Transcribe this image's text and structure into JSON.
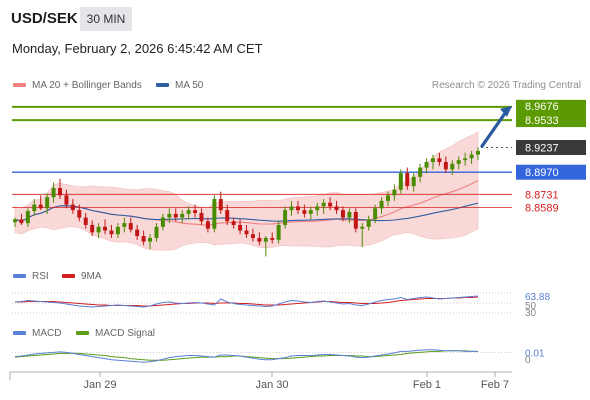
{
  "header": {
    "symbol": "USD/SEK",
    "timeframe": "30 MIN",
    "datetime": "Monday, February 2, 2026 6:45:42 AM CET"
  },
  "legend": {
    "ma20": "MA 20 + Bollinger Bands",
    "ma50": "MA 50",
    "credit": "Research © 2026 Trading Central"
  },
  "colors": {
    "ma20": "#f08080",
    "ma50": "#2f5fa3",
    "bollinger_fill": "#f9d4d4",
    "resistance": "#5b9a00",
    "support": "#3366dd",
    "sub_level": "#d92020",
    "price_box": "#3a3a3a",
    "rsi": "#5b7fd6",
    "rsi_ma": "#d42020",
    "macd": "#5b7fd6",
    "macd_signal": "#5a9e1a",
    "arrow": "#2a5aa0"
  },
  "chart_data": [
    {
      "type": "candlestick",
      "x_labels": [
        "Jan 29",
        "Jan 30",
        "Feb 1",
        "Feb 7"
      ],
      "levels": [
        {
          "value": 8.9676,
          "label": "8.9676",
          "kind": "resistance"
        },
        {
          "value": 8.9533,
          "label": "8.9533",
          "kind": "resistance"
        },
        {
          "value": 8.897,
          "label": "8.8970",
          "kind": "support"
        },
        {
          "value": 8.8731,
          "label": "8.8731",
          "kind": "sub"
        },
        {
          "value": 8.8589,
          "label": "8.8589",
          "kind": "sub"
        }
      ],
      "last_price": {
        "value": 8.9237,
        "label": "8.9237"
      },
      "ohlc": [
        [
          8.843,
          8.848,
          8.838,
          8.846
        ],
        [
          8.846,
          8.852,
          8.84,
          8.842
        ],
        [
          8.842,
          8.858,
          8.838,
          8.855
        ],
        [
          8.855,
          8.868,
          8.85,
          8.862
        ],
        [
          8.862,
          8.872,
          8.856,
          8.858
        ],
        [
          8.858,
          8.874,
          8.852,
          8.87
        ],
        [
          8.87,
          8.886,
          8.864,
          8.88
        ],
        [
          8.88,
          8.89,
          8.868,
          8.872
        ],
        [
          8.872,
          8.878,
          8.858,
          8.862
        ],
        [
          8.862,
          8.868,
          8.852,
          8.856
        ],
        [
          8.856,
          8.862,
          8.844,
          8.848
        ],
        [
          8.848,
          8.853,
          8.836,
          8.84
        ],
        [
          8.84,
          8.845,
          8.828,
          8.832
        ],
        [
          8.832,
          8.842,
          8.826,
          8.838
        ],
        [
          8.838,
          8.846,
          8.83,
          8.834
        ],
        [
          8.834,
          8.84,
          8.826,
          8.83
        ],
        [
          8.83,
          8.842,
          8.826,
          8.838
        ],
        [
          8.838,
          8.848,
          8.832,
          8.842
        ],
        [
          8.842,
          8.848,
          8.832,
          8.835
        ],
        [
          8.835,
          8.84,
          8.824,
          8.828
        ],
        [
          8.828,
          8.834,
          8.818,
          8.822
        ],
        [
          8.822,
          8.83,
          8.814,
          8.826
        ],
        [
          8.826,
          8.842,
          8.822,
          8.838
        ],
        [
          8.838,
          8.852,
          8.834,
          8.848
        ],
        [
          8.848,
          8.858,
          8.842,
          8.852
        ],
        [
          8.852,
          8.858,
          8.844,
          8.848
        ],
        [
          8.848,
          8.856,
          8.842,
          8.852
        ],
        [
          8.852,
          8.86,
          8.846,
          8.856
        ],
        [
          8.856,
          8.862,
          8.848,
          8.853
        ],
        [
          8.853,
          8.858,
          8.84,
          8.844
        ],
        [
          8.844,
          8.848,
          8.832,
          8.836
        ],
        [
          8.836,
          8.872,
          8.832,
          8.868
        ],
        [
          8.868,
          8.876,
          8.852,
          8.856
        ],
        [
          8.856,
          8.862,
          8.84,
          8.844
        ],
        [
          8.844,
          8.848,
          8.836,
          8.84
        ],
        [
          8.84,
          8.846,
          8.83,
          8.834
        ],
        [
          8.834,
          8.84,
          8.826,
          8.83
        ],
        [
          8.83,
          8.836,
          8.822,
          8.826
        ],
        [
          8.826,
          8.832,
          8.818,
          8.822
        ],
        [
          8.822,
          8.828,
          8.806,
          8.826
        ],
        [
          8.826,
          8.832,
          8.82,
          8.824
        ],
        [
          8.824,
          8.844,
          8.82,
          8.84
        ],
        [
          8.84,
          8.86,
          8.836,
          8.856
        ],
        [
          8.856,
          8.866,
          8.85,
          8.86
        ],
        [
          8.86,
          8.866,
          8.852,
          8.856
        ],
        [
          8.856,
          8.862,
          8.848,
          8.852
        ],
        [
          8.852,
          8.86,
          8.846,
          8.856
        ],
        [
          8.856,
          8.864,
          8.85,
          8.86
        ],
        [
          8.86,
          8.868,
          8.852,
          8.864
        ],
        [
          8.864,
          8.87,
          8.856,
          8.86
        ],
        [
          8.86,
          8.866,
          8.852,
          8.856
        ],
        [
          8.856,
          8.86,
          8.844,
          8.848
        ],
        [
          8.848,
          8.858,
          8.842,
          8.854
        ],
        [
          8.854,
          8.858,
          8.832,
          8.836
        ],
        [
          8.836,
          8.842,
          8.816,
          8.838
        ],
        [
          8.838,
          8.85,
          8.834,
          8.846
        ],
        [
          8.846,
          8.862,
          8.842,
          8.858
        ],
        [
          8.858,
          8.87,
          8.852,
          8.866
        ],
        [
          8.866,
          8.876,
          8.86,
          8.872
        ],
        [
          8.872,
          8.884,
          8.866,
          8.878
        ],
        [
          8.878,
          8.9,
          8.874,
          8.896
        ],
        [
          8.896,
          8.902,
          8.878,
          8.882
        ],
        [
          8.882,
          8.896,
          8.876,
          8.892
        ],
        [
          8.892,
          8.906,
          8.886,
          8.902
        ],
        [
          8.902,
          8.912,
          8.896,
          8.908
        ],
        [
          8.908,
          8.916,
          8.9,
          8.912
        ],
        [
          8.912,
          8.918,
          8.904,
          8.908
        ],
        [
          8.908,
          8.914,
          8.896,
          8.9
        ],
        [
          8.9,
          8.91,
          8.894,
          8.906
        ],
        [
          8.906,
          8.914,
          8.9,
          8.91
        ],
        [
          8.91,
          8.918,
          8.904,
          8.912
        ],
        [
          8.912,
          8.92,
          8.906,
          8.916
        ],
        [
          8.916,
          8.924,
          8.91,
          8.92
        ]
      ]
    },
    {
      "type": "line",
      "legend": [
        "RSI",
        "9MA"
      ],
      "levels": [
        {
          "value": 63.88,
          "label": "63.88"
        },
        {
          "value": 50,
          "label": "50"
        },
        {
          "value": 30,
          "label": "30"
        }
      ],
      "ylim": [
        20,
        80
      ],
      "series": [
        {
          "name": "RSI",
          "values": [
            52,
            53,
            55,
            54,
            53,
            52,
            51,
            50,
            48,
            46,
            44,
            43,
            42,
            43,
            44,
            45,
            46,
            45,
            44,
            43,
            42,
            44,
            48,
            51,
            52,
            50,
            49,
            50,
            51,
            50,
            48,
            46,
            58,
            52,
            49,
            47,
            46,
            45,
            44,
            43,
            44,
            48,
            52,
            55,
            54,
            52,
            51,
            53,
            54,
            52,
            50,
            48,
            49,
            46,
            45,
            48,
            52,
            55,
            57,
            58,
            61,
            57,
            59,
            61,
            62,
            60,
            58,
            59,
            60,
            61,
            62,
            63,
            64
          ]
        },
        {
          "name": "9MA",
          "values": [
            52,
            52,
            53,
            53,
            53,
            53,
            53,
            52,
            51,
            50,
            49,
            48,
            47,
            46,
            46,
            45,
            45,
            45,
            45,
            45,
            44,
            44,
            45,
            46,
            47,
            48,
            49,
            49,
            50,
            50,
            50,
            49,
            50,
            50,
            50,
            49,
            49,
            48,
            47,
            46,
            46,
            46,
            47,
            48,
            49,
            50,
            51,
            52,
            53,
            53,
            52,
            51,
            51,
            50,
            49,
            49,
            49,
            50,
            51,
            53,
            55,
            56,
            57,
            58,
            59,
            59,
            59,
            59,
            60,
            60,
            61,
            61,
            62
          ]
        }
      ]
    },
    {
      "type": "line",
      "legend": [
        "MACD",
        "MACD Signal"
      ],
      "levels": [
        {
          "value": 0.01,
          "label": "0.01"
        },
        {
          "value": 0,
          "label": "0"
        }
      ],
      "ylim": [
        -0.02,
        0.03
      ],
      "series": [
        {
          "name": "MACD",
          "values": [
            0.002,
            0.003,
            0.005,
            0.007,
            0.008,
            0.009,
            0.01,
            0.011,
            0.01,
            0.008,
            0.006,
            0.004,
            0.002,
            0.0,
            -0.002,
            -0.004,
            -0.005,
            -0.006,
            -0.007,
            -0.008,
            -0.009,
            -0.008,
            -0.006,
            -0.003,
            0.0,
            0.002,
            0.003,
            0.004,
            0.004,
            0.003,
            0.002,
            0.001,
            0.005,
            0.005,
            0.004,
            0.003,
            0.001,
            -0.001,
            -0.003,
            -0.004,
            -0.004,
            -0.002,
            0.0,
            0.003,
            0.004,
            0.004,
            0.004,
            0.005,
            0.006,
            0.006,
            0.005,
            0.004,
            0.003,
            0.001,
            0.0,
            0.001,
            0.003,
            0.005,
            0.007,
            0.009,
            0.012,
            0.012,
            0.013,
            0.014,
            0.015,
            0.015,
            0.014,
            0.013,
            0.013,
            0.013,
            0.012,
            0.012,
            0.012
          ]
        },
        {
          "name": "MACD Signal",
          "values": [
            0.001,
            0.002,
            0.003,
            0.004,
            0.005,
            0.006,
            0.007,
            0.008,
            0.008,
            0.008,
            0.008,
            0.007,
            0.006,
            0.005,
            0.004,
            0.002,
            0.001,
            0.0,
            -0.002,
            -0.003,
            -0.004,
            -0.005,
            -0.005,
            -0.005,
            -0.004,
            -0.003,
            -0.002,
            -0.001,
            0.0,
            0.001,
            0.001,
            0.001,
            0.002,
            0.002,
            0.003,
            0.003,
            0.002,
            0.001,
            0.0,
            -0.001,
            -0.002,
            -0.002,
            -0.002,
            -0.001,
            0.0,
            0.001,
            0.002,
            0.003,
            0.003,
            0.004,
            0.004,
            0.004,
            0.004,
            0.003,
            0.003,
            0.002,
            0.002,
            0.003,
            0.004,
            0.005,
            0.006,
            0.008,
            0.009,
            0.01,
            0.011,
            0.012,
            0.012,
            0.013,
            0.013,
            0.013,
            0.013,
            0.012,
            0.012
          ]
        }
      ]
    }
  ]
}
